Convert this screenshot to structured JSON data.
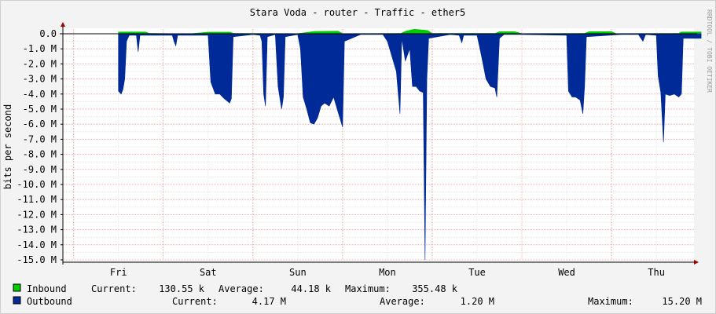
{
  "title": "Stara Voda - router - Traffic - ether5",
  "watermark": "RRDTOOL / TOBI OETIKER",
  "chart_data": {
    "type": "area",
    "ylabel": "bits per second",
    "ylim": [
      -15.0,
      0.0
    ],
    "y_ticks": [
      "0.0",
      "-1.0 M",
      "-2.0 M",
      "-3.0 M",
      "-4.0 M",
      "-5.0 M",
      "-6.0 M",
      "-7.0 M",
      "-8.0 M",
      "-9.0 M",
      "-10.0 M",
      "-11.0 M",
      "-12.0 M",
      "-13.0 M",
      "-14.0 M",
      "-15.0 M"
    ],
    "x_ticks": [
      "Fri",
      "Sat",
      "Sun",
      "Mon",
      "Tue",
      "Wed",
      "Thu"
    ],
    "grid": true,
    "colors": {
      "inbound": "#00cc00",
      "outbound": "#002a97"
    },
    "series": [
      {
        "name": "Inbound",
        "unit": "M bits per second",
        "points": [
          [
            0.0,
            0.12
          ],
          [
            0.3,
            0.12
          ],
          [
            0.35,
            0.02
          ],
          [
            0.8,
            0.0
          ],
          [
            1.0,
            0.11
          ],
          [
            1.25,
            0.11
          ],
          [
            1.28,
            0.02
          ],
          [
            2.0,
            0.01
          ],
          [
            2.18,
            0.15
          ],
          [
            2.45,
            0.17
          ],
          [
            2.5,
            0.01
          ],
          [
            3.15,
            0.02
          ],
          [
            3.2,
            0.16
          ],
          [
            3.3,
            0.3
          ],
          [
            3.45,
            0.22
          ],
          [
            3.5,
            0.02
          ],
          [
            4.2,
            0.02
          ],
          [
            4.25,
            0.14
          ],
          [
            4.42,
            0.14
          ],
          [
            4.5,
            0.01
          ],
          [
            5.2,
            0.02
          ],
          [
            5.25,
            0.14
          ],
          [
            5.5,
            0.14
          ],
          [
            5.55,
            0.01
          ],
          [
            6.25,
            0.02
          ],
          [
            6.28,
            0.12
          ],
          [
            6.5,
            0.12
          ]
        ]
      },
      {
        "name": "Outbound",
        "unit": "M bits per second",
        "points": [
          [
            0.0,
            -3.8
          ],
          [
            0.03,
            -4.0
          ],
          [
            0.05,
            -3.7
          ],
          [
            0.07,
            -3.0
          ],
          [
            0.09,
            -0.5
          ],
          [
            0.12,
            -0.1
          ],
          [
            0.2,
            -0.1
          ],
          [
            0.22,
            -1.2
          ],
          [
            0.24,
            -0.1
          ],
          [
            0.6,
            -0.1
          ],
          [
            0.62,
            -0.5
          ],
          [
            0.64,
            -0.8
          ],
          [
            0.66,
            -0.1
          ],
          [
            1.0,
            -0.1
          ],
          [
            1.03,
            -3.2
          ],
          [
            1.08,
            -4.0
          ],
          [
            1.13,
            -4.0
          ],
          [
            1.18,
            -4.3
          ],
          [
            1.24,
            -4.6
          ],
          [
            1.26,
            -4.3
          ],
          [
            1.28,
            -0.2
          ],
          [
            1.5,
            -0.05
          ],
          [
            1.58,
            -0.1
          ],
          [
            1.6,
            -0.5
          ],
          [
            1.62,
            -4.0
          ],
          [
            1.64,
            -4.8
          ],
          [
            1.66,
            -0.2
          ],
          [
            1.75,
            -0.05
          ],
          [
            1.78,
            -3.5
          ],
          [
            1.82,
            -5.0
          ],
          [
            1.84,
            -4.2
          ],
          [
            1.86,
            -0.2
          ],
          [
            2.0,
            -0.05
          ],
          [
            2.03,
            -1.0
          ],
          [
            2.06,
            -4.2
          ],
          [
            2.1,
            -5.0
          ],
          [
            2.14,
            -5.9
          ],
          [
            2.18,
            -6.0
          ],
          [
            2.22,
            -5.6
          ],
          [
            2.26,
            -4.8
          ],
          [
            2.3,
            -4.6
          ],
          [
            2.35,
            -4.8
          ],
          [
            2.4,
            -4.2
          ],
          [
            2.44,
            -5.0
          ],
          [
            2.47,
            -5.6
          ],
          [
            2.5,
            -6.2
          ],
          [
            2.52,
            -0.5
          ],
          [
            2.7,
            -0.05
          ],
          [
            2.95,
            -0.05
          ],
          [
            3.0,
            -0.5
          ],
          [
            3.05,
            -1.5
          ],
          [
            3.1,
            -2.5
          ],
          [
            3.14,
            -5.3
          ],
          [
            3.16,
            -0.3
          ],
          [
            3.2,
            -1.8
          ],
          [
            3.25,
            -1.0
          ],
          [
            3.28,
            -3.5
          ],
          [
            3.32,
            -3.5
          ],
          [
            3.36,
            -3.8
          ],
          [
            3.4,
            -3.9
          ],
          [
            3.42,
            -15.0
          ],
          [
            3.44,
            -3.0
          ],
          [
            3.46,
            -0.3
          ],
          [
            3.7,
            -0.05
          ],
          [
            3.8,
            -0.1
          ],
          [
            3.83,
            -0.6
          ],
          [
            3.85,
            -0.1
          ],
          [
            4.0,
            -0.1
          ],
          [
            4.05,
            -1.5
          ],
          [
            4.1,
            -3.0
          ],
          [
            4.15,
            -3.5
          ],
          [
            4.2,
            -3.6
          ],
          [
            4.22,
            -4.2
          ],
          [
            4.25,
            -0.3
          ],
          [
            4.3,
            -0.05
          ],
          [
            4.5,
            -0.05
          ],
          [
            5.0,
            -0.1
          ],
          [
            5.02,
            -3.8
          ],
          [
            5.06,
            -4.2
          ],
          [
            5.1,
            -4.2
          ],
          [
            5.15,
            -4.4
          ],
          [
            5.18,
            -5.3
          ],
          [
            5.2,
            -3.5
          ],
          [
            5.22,
            -0.2
          ],
          [
            5.6,
            -0.05
          ],
          [
            5.8,
            -0.05
          ],
          [
            5.85,
            -0.5
          ],
          [
            5.88,
            -0.05
          ],
          [
            6.0,
            -0.1
          ],
          [
            6.02,
            -2.8
          ],
          [
            6.05,
            -3.9
          ],
          [
            6.08,
            -7.2
          ],
          [
            6.1,
            -4.0
          ],
          [
            6.15,
            -4.1
          ],
          [
            6.2,
            -4.0
          ],
          [
            6.25,
            -4.2
          ],
          [
            6.28,
            -4.0
          ],
          [
            6.3,
            -0.3
          ],
          [
            6.5,
            -0.3
          ]
        ]
      }
    ],
    "legend": [
      {
        "name": "Inbound",
        "current": "130.55 k",
        "average": "44.18 k",
        "maximum": "355.48 k"
      },
      {
        "name": "Outbound",
        "current": "4.17 M",
        "average": "1.20 M",
        "maximum": "15.20 M"
      }
    ],
    "legend_labels": {
      "current": "Current:",
      "average": "Average:",
      "maximum": "Maximum:"
    }
  }
}
